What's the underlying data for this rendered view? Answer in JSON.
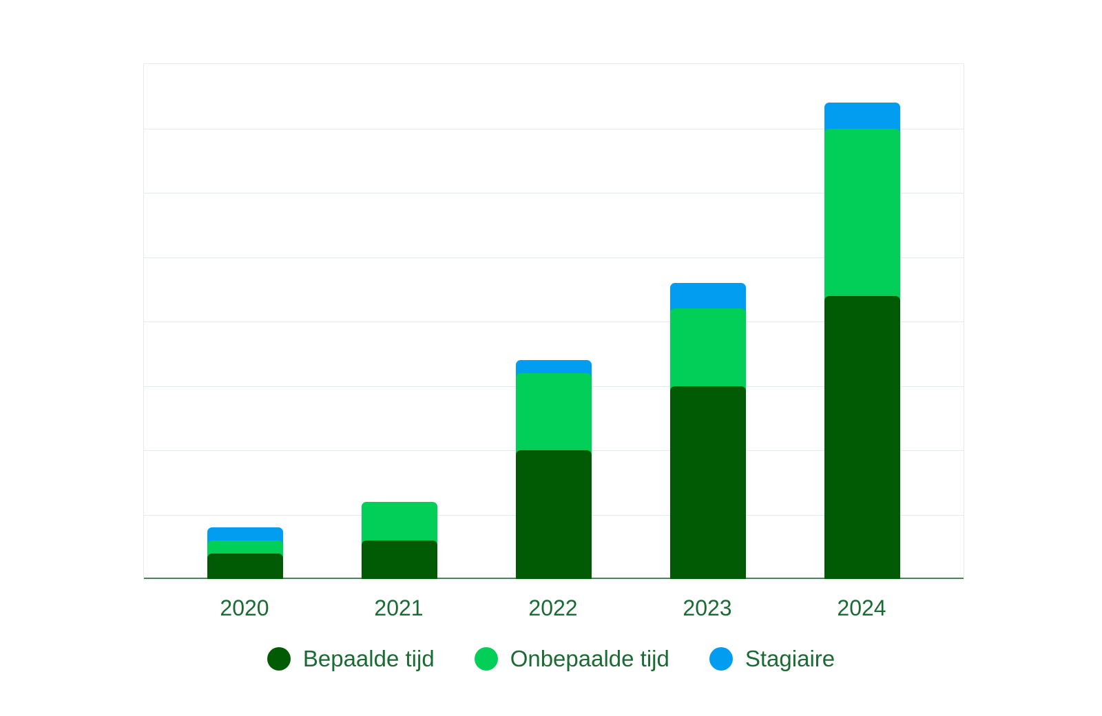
{
  "page": {
    "background_color": "#ffffff",
    "text_color": "#1a6b33"
  },
  "chart_data": {
    "type": "bar",
    "stacked": true,
    "title": "",
    "xlabel": "",
    "ylabel": "",
    "categories": [
      "2020",
      "2021",
      "2022",
      "2023",
      "2024"
    ],
    "series": [
      {
        "name": "Bepaalde tijd",
        "color": "#015b04",
        "values": [
          4,
          6,
          20,
          30,
          44
        ]
      },
      {
        "name": "Onbepaalde tijd",
        "color": "#02cf57",
        "values": [
          2,
          6,
          12,
          12,
          26
        ]
      },
      {
        "name": "Stagiaire",
        "color": "#029df0",
        "values": [
          2,
          0,
          2,
          4,
          4
        ]
      }
    ],
    "ylim": [
      0,
      80
    ],
    "y_gridline_interval": 10,
    "y_tick_labels_visible": false,
    "grid": "horizontal",
    "gridline_color": "#e2ece5",
    "axis_line_color": "#4c8058",
    "label_text_color": "#1a6b33",
    "legend_position": "bottom",
    "legend_labels": [
      "Bepaalde tijd",
      "Onbepaalde tijd",
      "Stagiaire"
    ]
  }
}
